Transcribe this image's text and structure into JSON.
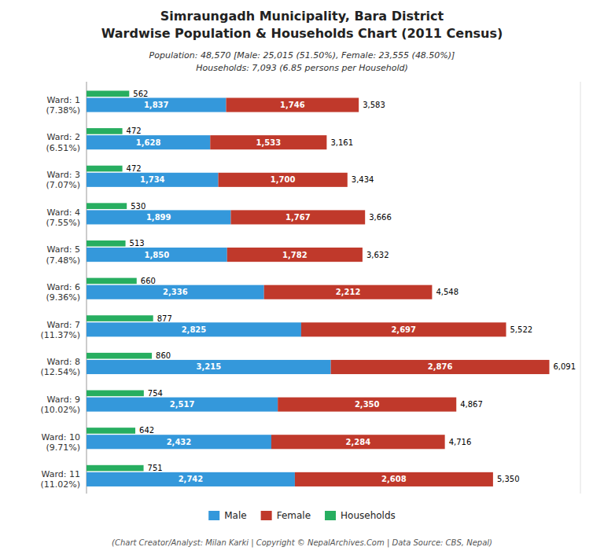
{
  "chart_data": {
    "type": "bar",
    "orientation": "horizontal",
    "title": [
      "Simraungadh Municipality, Bara District",
      "Wardwise Population & Households Chart (2011 Census)"
    ],
    "subtitle": [
      "Population: 48,570 [Male: 25,015 (51.50%), Female: 23,555 (48.50%)]",
      "Households: 7,093 (6.85 persons per Household)"
    ],
    "annotations": [
      "(Chart Creator/Analyst: Milan Karki | Copyright © NepalArchives.Com | Data Source: CBS, Nepal)"
    ],
    "categories": [
      "Ward: 1\n(7.38%)",
      "Ward: 2\n(6.51%)",
      "Ward: 3\n(7.07%)",
      "Ward: 4\n(7.55%)",
      "Ward: 5\n(7.48%)",
      "Ward: 6\n(9.36%)",
      "Ward: 7\n(11.37%)",
      "Ward: 8\n(12.54%)",
      "Ward: 9\n(10.02%)",
      "Ward: 10\n(9.71%)",
      "Ward: 11\n(11.02%)"
    ],
    "series": [
      {
        "name": "Male",
        "type": "stacked_bar",
        "color": "#3498db",
        "values": [
          1837,
          1628,
          1734,
          1899,
          1850,
          2336,
          2825,
          3215,
          2517,
          2432,
          2742
        ],
        "value_labels": [
          "1,837",
          "1,628",
          "1,734",
          "1,899",
          "1,850",
          "2,336",
          "2,825",
          "3,215",
          "2,517",
          "2,432",
          "2,742"
        ]
      },
      {
        "name": "Female",
        "type": "stacked_bar",
        "color": "#c0392b",
        "values": [
          1746,
          1533,
          1700,
          1767,
          1782,
          2212,
          2697,
          2876,
          2350,
          2284,
          2608
        ],
        "value_labels": [
          "1,746",
          "1,533",
          "1,700",
          "1,767",
          "1,782",
          "2,212",
          "2,697",
          "2,876",
          "2,350",
          "2,284",
          "2,608"
        ]
      },
      {
        "name": "Households",
        "type": "bar",
        "color": "#27ae60",
        "values": [
          562,
          472,
          472,
          530,
          513,
          660,
          877,
          860,
          754,
          642,
          751
        ]
      }
    ],
    "totals": [
      3583,
      3161,
      3434,
      3666,
      3632,
      4548,
      5522,
      6091,
      4867,
      4716,
      5350
    ],
    "total_labels": [
      "3,583",
      "3,161",
      "3,434",
      "3,666",
      "3,632",
      "4,548",
      "5,522",
      "6,091",
      "4,867",
      "4,716",
      "5,350"
    ],
    "xlim": [
      0,
      6500
    ],
    "data_labels": true,
    "tick_labels": "y",
    "grid": false,
    "legend": "bottom"
  }
}
